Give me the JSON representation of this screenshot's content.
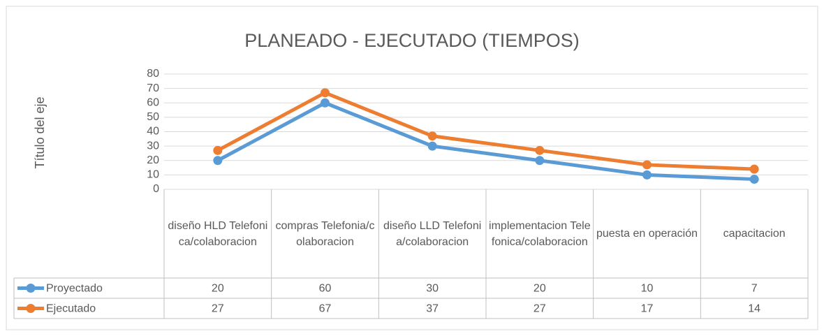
{
  "chart_data": {
    "type": "line",
    "title": "PLANEADO - EJECUTADO (TIEMPOS)",
    "y_label": "Título del eje",
    "categories": [
      "diseño HLD Telefonica/colaboracion",
      "compras Telefonia/colaboracion",
      "diseño LLD Telefonia/colaboracion",
      "implementacion Telefonica/colaboracion",
      "puesta en operación",
      "capacitacion"
    ],
    "series": [
      {
        "name": "Proyectado",
        "color": "#5b9bd5",
        "values": [
          20,
          60,
          30,
          20,
          10,
          7
        ]
      },
      {
        "name": "Ejecutado",
        "color": "#ed7d31",
        "values": [
          27,
          67,
          37,
          27,
          17,
          14
        ]
      }
    ],
    "ylim": [
      0,
      80
    ],
    "yticks": [
      0,
      10,
      20,
      30,
      40,
      50,
      60,
      70,
      80
    ],
    "grid": true,
    "data_table": true
  }
}
